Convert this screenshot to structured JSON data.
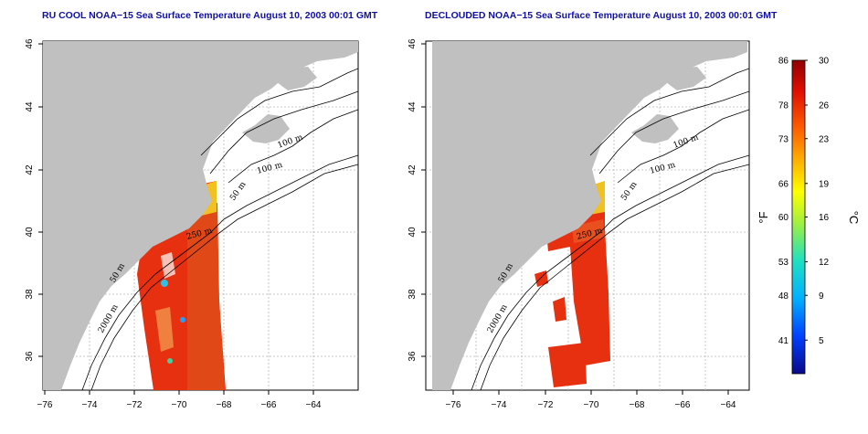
{
  "maps": [
    {
      "id": "left",
      "title": "RU COOL NOAA−15 Sea Surface Temperature August 10, 2003 00:01 GMT",
      "lon_ticks": [
        "−76",
        "−74",
        "−72",
        "−70",
        "−68",
        "−66",
        "−64"
      ],
      "lat_ticks": [
        "36",
        "38",
        "40",
        "42",
        "44",
        "46"
      ],
      "contour_labels": [
        "100 m",
        "100 m",
        "50 m",
        "250 m",
        "50 m",
        "2000 m"
      ]
    },
    {
      "id": "right",
      "title": "DECLOUDED NOAA−15 Sea Surface Temperature August 10, 2003 00:01 GMT",
      "lon_ticks": [
        "−76",
        "−74",
        "−72",
        "−70",
        "−68",
        "−66",
        "−64"
      ],
      "lat_ticks": [
        "36",
        "38",
        "40",
        "42",
        "44",
        "46"
      ],
      "contour_labels": [
        "100 m",
        "100 m",
        "50 m",
        "250 m",
        "50 m",
        "2000 m"
      ]
    }
  ],
  "colorbar": {
    "fahrenheit_label": "°F",
    "celsius_label": "°C",
    "f_ticks": [
      "86",
      "78",
      "73",
      "66",
      "60",
      "53",
      "48",
      "41"
    ],
    "c_ticks": [
      "30",
      "26",
      "23",
      "19",
      "16",
      "12",
      "9",
      "5"
    ],
    "c_min": 2,
    "c_max": 30,
    "gradient_colors": [
      "#0a0a8a",
      "#0040ff",
      "#00b0ff",
      "#20e0c0",
      "#a0f040",
      "#ffff00",
      "#ffb000",
      "#ff6000",
      "#e01000",
      "#900000"
    ]
  },
  "colors": {
    "land": "#c0c0c0",
    "sst_warm": "#e83010",
    "sst_hot": "#d02008",
    "sst_yellow": "#f0d020",
    "grid": "#b8b8b8"
  }
}
